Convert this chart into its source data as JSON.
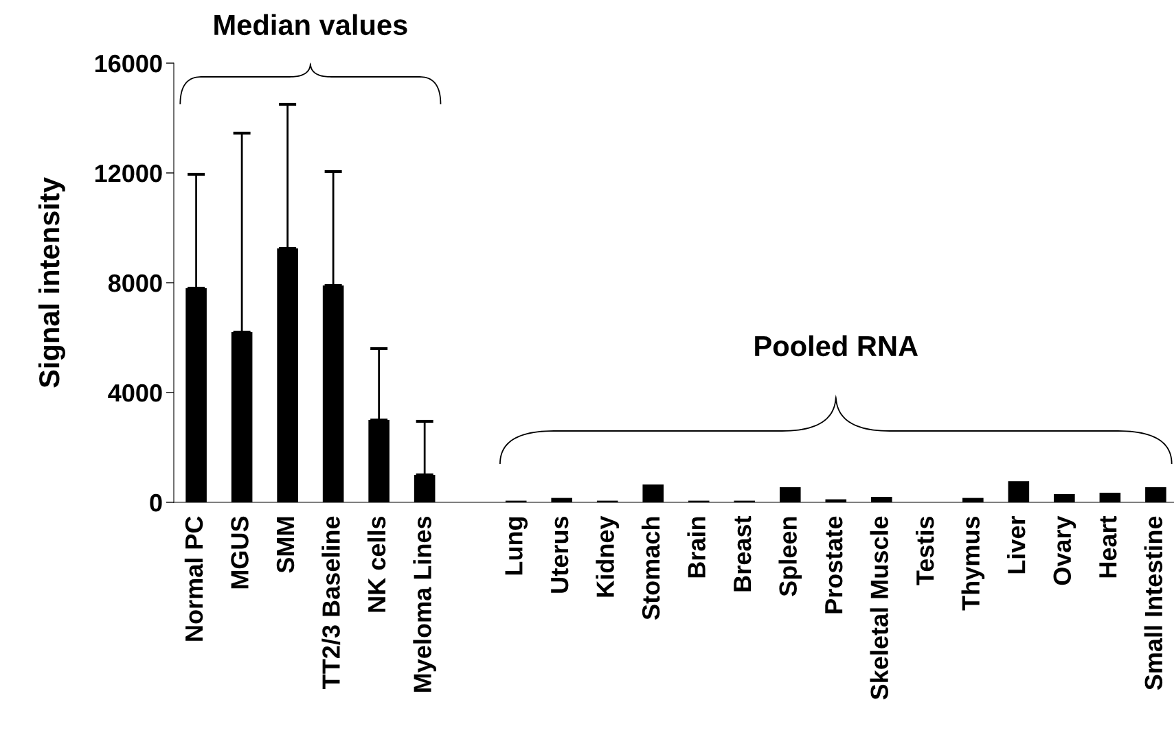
{
  "chart_data": {
    "type": "bar",
    "ylabel": "Signal intensity",
    "categories": [
      "Normal PC",
      "MGUS",
      "SMM",
      "TT2/3 Baseline",
      "NK cells",
      "Myeloma Lines",
      null,
      "Lung",
      "Uterus",
      "Kidney",
      "Stomach",
      "Brain",
      "Breast",
      "Spleen",
      "Prostate",
      "Skeletal Muscle",
      "Testis",
      "Thymus",
      "Liver",
      "Ovary",
      "Heart",
      "Small Intestine"
    ],
    "values": [
      7800,
      6200,
      9250,
      7900,
      3000,
      1000,
      null,
      60,
      160,
      60,
      650,
      60,
      60,
      550,
      110,
      200,
      0,
      160,
      770,
      300,
      350,
      550
    ],
    "errors": [
      [
        7800,
        11950
      ],
      [
        6200,
        13450
      ],
      [
        9250,
        14500
      ],
      [
        7900,
        12050
      ],
      [
        3000,
        5600
      ],
      [
        1000,
        2950
      ],
      null,
      null,
      null,
      null,
      null,
      null,
      null,
      null,
      null,
      null,
      null,
      null,
      null,
      null,
      null,
      null
    ],
    "color": "#000000",
    "ylim": [
      0,
      16000
    ],
    "yticks": [
      0,
      4000,
      8000,
      12000,
      16000
    ],
    "grid": false,
    "annotations": [
      "Median values",
      "Pooled RNA"
    ]
  }
}
